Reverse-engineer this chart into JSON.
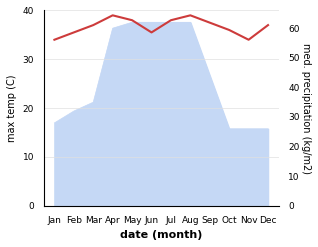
{
  "months": [
    "Jan",
    "Feb",
    "Mar",
    "Apr",
    "May",
    "Jun",
    "Jul",
    "Aug",
    "Sep",
    "Oct",
    "Nov",
    "Dec"
  ],
  "x": [
    0,
    1,
    2,
    3,
    4,
    5,
    6,
    7,
    8,
    9,
    10,
    11
  ],
  "temperature": [
    34.0,
    35.5,
    37.0,
    39.0,
    38.0,
    35.5,
    38.0,
    39.0,
    37.5,
    36.0,
    34.0,
    37.0
  ],
  "precipitation": [
    28,
    32,
    35,
    60,
    62,
    62,
    62,
    62,
    44,
    26,
    26,
    26
  ],
  "temp_color": "#cd3b3b",
  "precip_fill_color": "#c5d8f5",
  "ylabel_left": "max temp (C)",
  "ylabel_right": "med. precipitation (kg/m2)",
  "xlabel": "date (month)",
  "ylim_left": [
    0,
    40
  ],
  "ylim_right": [
    0,
    66
  ],
  "yticks_left": [
    0,
    10,
    20,
    30,
    40
  ],
  "yticks_right": [
    0,
    10,
    20,
    30,
    40,
    50,
    60
  ],
  "bg_color": "#ffffff"
}
